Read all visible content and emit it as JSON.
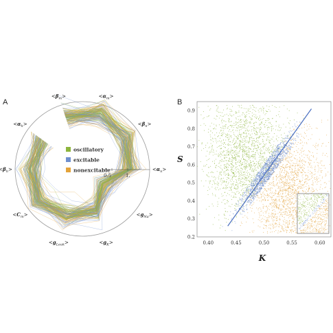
{
  "panel_a_letter": "A",
  "panel_b_letter": "B",
  "colors": {
    "oscillatory": "#8db53c",
    "excitable": "#6f8fcf",
    "nonexcitable": "#e3a33a",
    "fit_line": "#4a6fc0",
    "frame": "#888888"
  },
  "chart_data": [
    {
      "type": "radar",
      "axes": [
        "<βm>",
        "<αm>",
        "<βn>",
        "<αn>",
        "<gNa>",
        "<gK>",
        "<gLeak>",
        "<Cm>",
        "<βh>",
        "<αh>"
      ],
      "axis_labels": [
        {
          "lead": "<",
          "sym": "β",
          "sub": "m",
          "trail": ">"
        },
        {
          "lead": "<",
          "sym": "α",
          "sub": "m",
          "trail": ">"
        },
        {
          "lead": "<",
          "sym": "β",
          "sub": "n",
          "trail": ">"
        },
        {
          "lead": "<",
          "sym": "α",
          "sub": "n",
          "trail": ">"
        },
        {
          "lead": "<",
          "sym": "g",
          "sub": "Na",
          "trail": ">"
        },
        {
          "lead": "<",
          "sym": "g",
          "sub": "K",
          "trail": ">"
        },
        {
          "lead": "<",
          "sym": "g",
          "sub": "Leak",
          "trail": ">"
        },
        {
          "lead": "<",
          "sym": "C",
          "sub": "m",
          "trail": ">"
        },
        {
          "lead": "<",
          "sym": "β",
          "sub": "h",
          "trail": ">"
        },
        {
          "lead": "<",
          "sym": "α",
          "sub": "h",
          "trail": ">"
        }
      ],
      "radial_ticks": [
        "0.5",
        "1."
      ],
      "radial_range": [
        0,
        1.5
      ],
      "legend": [
        {
          "label": "oscillatory",
          "class": "oscillatory"
        },
        {
          "label": "excitable",
          "class": "excitable"
        },
        {
          "label": "nonexcitable",
          "class": "nonexcitable"
        }
      ],
      "legend_placement": "center",
      "mean_profile": {
        "<βm>": 1.22,
        "<αm>": 1.3,
        "<βn>": 1.2,
        "<αn>": 1.05,
        "<gNa>": 0.6,
        "<gK>": 1.0,
        "<gLeak>": 1.1,
        "<Cm>": 1.2,
        "<βh>": 1.15,
        "<αh>": 1.1
      },
      "spread": 0.13
    },
    {
      "type": "scatter",
      "xlabel": "K",
      "ylabel": "S",
      "xlim": [
        0.38,
        0.62
      ],
      "ylim": [
        0.2,
        0.95
      ],
      "xticks": [
        "0.40",
        "0.45",
        "0.50",
        "0.55",
        "0.60"
      ],
      "yticks": [
        "0.2",
        "0.3",
        "0.4",
        "0.5",
        "0.6",
        "0.7",
        "0.8",
        "0.9"
      ],
      "fit_line": {
        "x": [
          0.435,
          0.585
        ],
        "y": [
          0.26,
          0.91
        ]
      },
      "series": [
        {
          "name": "oscillatory",
          "class": "oscillatory",
          "center": [
            0.465,
            0.65
          ],
          "spread": [
            0.035,
            0.17
          ],
          "side": "above"
        },
        {
          "name": "excitable",
          "class": "excitable",
          "center": [
            0.505,
            0.55
          ],
          "spread": [
            0.03,
            0.13
          ],
          "side": "on"
        },
        {
          "name": "nonexcitable",
          "class": "nonexcitable",
          "center": [
            0.545,
            0.45
          ],
          "spread": [
            0.035,
            0.17
          ],
          "side": "below"
        }
      ],
      "inset": {
        "present": true,
        "placement": "bottom-right"
      }
    }
  ]
}
